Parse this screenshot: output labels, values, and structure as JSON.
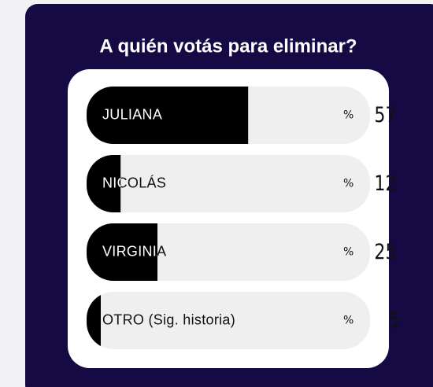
{
  "poll": {
    "question": "A quién votás para eliminar?",
    "percent_sign": "%",
    "options": [
      {
        "label": "JULIANA",
        "value": 57
      },
      {
        "label": "NICOLÁS",
        "value": 12
      },
      {
        "label": "VIRGINIA",
        "value": 25
      },
      {
        "label": "OTRO (Sig. historia)",
        "value": 5
      }
    ]
  }
}
